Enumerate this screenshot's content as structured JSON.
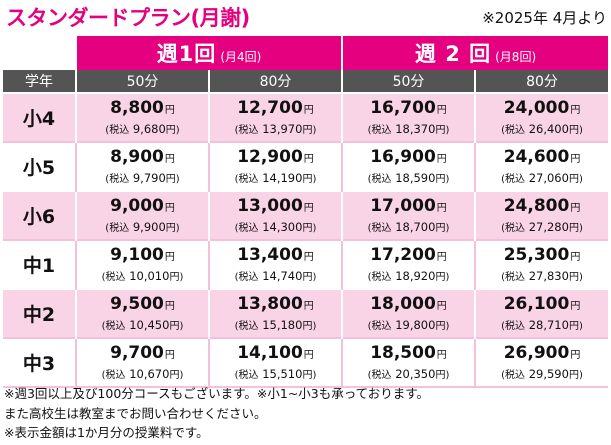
{
  "title": "スタンダードプラン(月謝)",
  "effective": "※2025年 4月より",
  "frequencies": [
    {
      "main": "週1回",
      "sub": "(月4回)"
    },
    {
      "main": "週 2 回",
      "sub": "(月8回)"
    }
  ],
  "grade_header": "学年",
  "durations": [
    "50分",
    "80分",
    "50分",
    "80分"
  ],
  "yen": "円",
  "tax_label": "(税込",
  "tax_close": "円)",
  "rows": [
    {
      "grade": "小4",
      "cells": [
        {
          "price": "8,800",
          "tax": "9,680"
        },
        {
          "price": "12,700",
          "tax": "13,970"
        },
        {
          "price": "16,700",
          "tax": "18,370"
        },
        {
          "price": "24,000",
          "tax": "26,400"
        }
      ]
    },
    {
      "grade": "小5",
      "cells": [
        {
          "price": "8,900",
          "tax": "9,790"
        },
        {
          "price": "12,900",
          "tax": "14,190"
        },
        {
          "price": "16,900",
          "tax": "18,590"
        },
        {
          "price": "24,600",
          "tax": "27,060"
        }
      ]
    },
    {
      "grade": "小6",
      "cells": [
        {
          "price": "9,000",
          "tax": "9,900"
        },
        {
          "price": "13,000",
          "tax": "14,300"
        },
        {
          "price": "17,000",
          "tax": "18,700"
        },
        {
          "price": "24,800",
          "tax": "27,280"
        }
      ]
    },
    {
      "grade": "中1",
      "cells": [
        {
          "price": "9,100",
          "tax": "10,010"
        },
        {
          "price": "13,400",
          "tax": "14,740"
        },
        {
          "price": "17,200",
          "tax": "18,920"
        },
        {
          "price": "25,300",
          "tax": "27,830"
        }
      ]
    },
    {
      "grade": "中2",
      "cells": [
        {
          "price": "9,500",
          "tax": "10,450"
        },
        {
          "price": "13,800",
          "tax": "15,180"
        },
        {
          "price": "18,000",
          "tax": "19,800"
        },
        {
          "price": "26,100",
          "tax": "28,710"
        }
      ]
    },
    {
      "grade": "中3",
      "cells": [
        {
          "price": "9,700",
          "tax": "10,670"
        },
        {
          "price": "14,100",
          "tax": "15,510"
        },
        {
          "price": "18,500",
          "tax": "20,350"
        },
        {
          "price": "26,900",
          "tax": "29,590"
        }
      ]
    }
  ],
  "notes": [
    "※週3回以上及び100分コースもございます。※小1~小3も承っております。",
    "また高校生は教室までお問い合わせください。",
    "※表示金額は1か月分の授業料です。"
  ],
  "colors": {
    "accent": "#e4007f",
    "row_pink": "#f9d3e6",
    "header_gray": "#545454"
  }
}
